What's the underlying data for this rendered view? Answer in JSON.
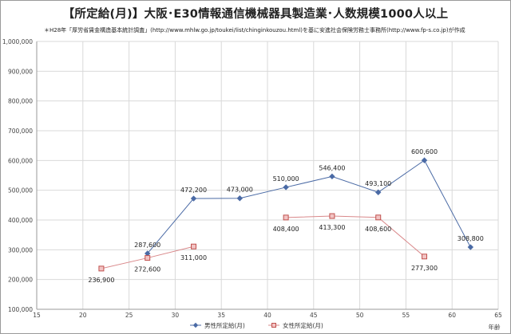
{
  "title": "【所定給(月)】大阪･E30情報通信機械器具製造業･人数規模1000人以上",
  "subtitle": "＊H28年「厚労省賃金構造基本統計調査」(http://www.mhlw.go.jp/toukei/list/chinginkouzou.html)を基に安進社会保険労務士事務所(http://www.fp-s.co.jp)が作成",
  "colors": {
    "male": "#4a6aa5",
    "female": "#d9888a",
    "female_fill": "#f2c4c4",
    "grid": "#d9d9d9"
  },
  "chart_data": {
    "type": "line",
    "xlabel": "年齢",
    "ylabel": "",
    "xlim": [
      15,
      65
    ],
    "ylim": [
      100000,
      1000000
    ],
    "x_ticks": [
      15,
      20,
      25,
      30,
      35,
      40,
      45,
      50,
      55,
      60,
      65
    ],
    "y_ticks": [
      100000,
      200000,
      300000,
      400000,
      500000,
      600000,
      700000,
      800000,
      900000,
      1000000
    ],
    "x_tick_labels": [
      "15",
      "20",
      "25",
      "30",
      "35",
      "40",
      "45",
      "50",
      "55",
      "60",
      "65"
    ],
    "y_tick_labels": [
      "100,000",
      "200,000",
      "300,000",
      "400,000",
      "500,000",
      "600,000",
      "700,000",
      "800,000",
      "900,000",
      "1,000,000"
    ],
    "grid": true,
    "legend_position": "bottom",
    "series": [
      {
        "name": "男性所定給(月)",
        "marker": "diamond",
        "segments": [
          {
            "x": [
              27,
              32,
              37,
              42,
              47,
              52,
              57,
              62
            ],
            "y": [
              287600,
              472200,
              473000,
              510000,
              546400,
              493100,
              600600,
              308800
            ],
            "labels": [
              "287,600",
              "472,200",
              "473,000",
              "510,000",
              "546,400",
              "493,100",
              "600,600",
              "308,800"
            ]
          }
        ]
      },
      {
        "name": "女性所定給(月)",
        "marker": "square",
        "segments": [
          {
            "x": [
              22,
              27,
              32
            ],
            "y": [
              236900,
              272600,
              311000
            ],
            "labels": [
              "236,900",
              "272,600",
              "311,000"
            ]
          },
          {
            "x": [
              42,
              47,
              52,
              57
            ],
            "y": [
              408400,
              413300,
              408600,
              277300
            ],
            "labels": [
              "408,400",
              "413,300",
              "408,600",
              "277,300"
            ]
          }
        ]
      }
    ]
  }
}
